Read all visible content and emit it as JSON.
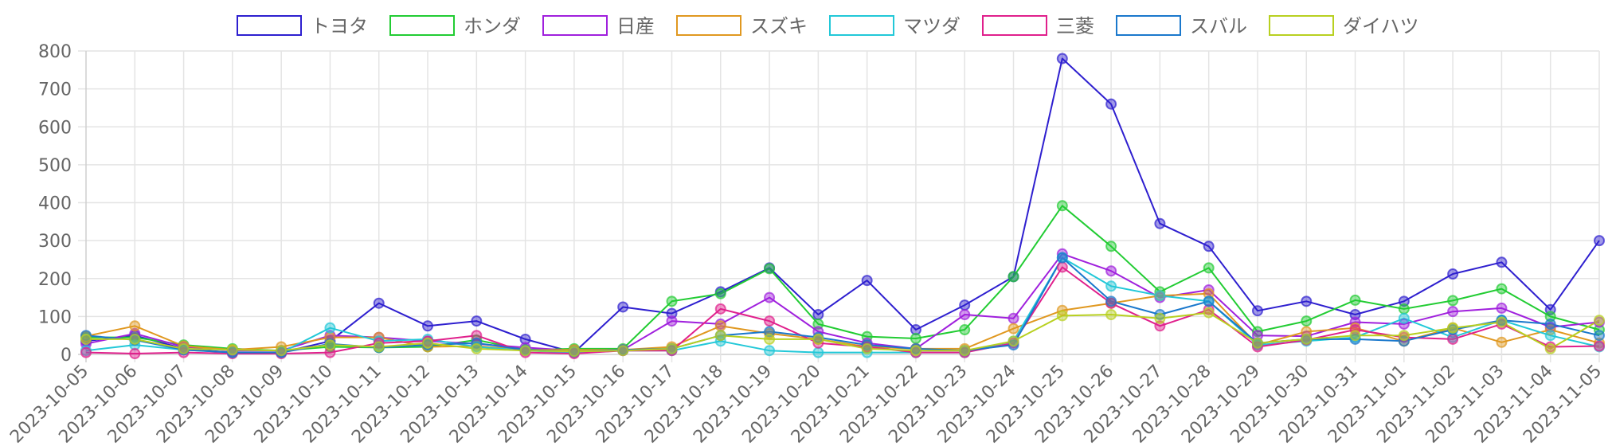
{
  "chart_data": {
    "type": "line",
    "title": "",
    "xlabel": "",
    "ylabel": "",
    "ylim": [
      0,
      800
    ],
    "yticks": [
      0,
      100,
      200,
      300,
      400,
      500,
      600,
      700,
      800
    ],
    "grid": true,
    "legend_position": "top",
    "categories": [
      "2023-10-05",
      "2023-10-06",
      "2023-10-07",
      "2023-10-08",
      "2023-10-09",
      "2023-10-10",
      "2023-10-11",
      "2023-10-12",
      "2023-10-13",
      "2023-10-14",
      "2023-10-15",
      "2023-10-16",
      "2023-10-17",
      "2023-10-18",
      "2023-10-19",
      "2023-10-20",
      "2023-10-21",
      "2023-10-22",
      "2023-10-23",
      "2023-10-24",
      "2023-10-25",
      "2023-10-26",
      "2023-10-27",
      "2023-10-28",
      "2023-10-29",
      "2023-10-30",
      "2023-10-31",
      "2023-11-01",
      "2023-11-02",
      "2023-11-03",
      "2023-11-04",
      "2023-11-05"
    ],
    "series": [
      {
        "name": "トヨタ",
        "color": "#2e1fcf",
        "values": [
          35,
          50,
          15,
          5,
          5,
          35,
          135,
          75,
          88,
          40,
          5,
          125,
          108,
          165,
          228,
          105,
          195,
          65,
          130,
          205,
          780,
          660,
          345,
          285,
          115,
          140,
          105,
          140,
          212,
          243,
          118,
          300
        ]
      },
      {
        "name": "ホンダ",
        "color": "#22cc33",
        "values": [
          45,
          45,
          25,
          15,
          10,
          20,
          18,
          20,
          38,
          12,
          15,
          15,
          140,
          160,
          226,
          80,
          47,
          42,
          65,
          205,
          392,
          285,
          165,
          228,
          60,
          88,
          143,
          120,
          142,
          173,
          100,
          65
        ]
      },
      {
        "name": "日産",
        "color": "#a020dd",
        "values": [
          28,
          55,
          20,
          10,
          10,
          50,
          45,
          35,
          28,
          18,
          10,
          12,
          88,
          80,
          150,
          60,
          30,
          15,
          105,
          95,
          265,
          220,
          150,
          170,
          50,
          48,
          85,
          80,
          113,
          122,
          72,
          85
        ]
      },
      {
        "name": "スズキ",
        "color": "#e09820",
        "values": [
          48,
          75,
          22,
          12,
          20,
          45,
          45,
          20,
          22,
          12,
          12,
          12,
          20,
          75,
          55,
          40,
          20,
          15,
          15,
          68,
          116,
          135,
          155,
          160,
          25,
          60,
          70,
          35,
          70,
          32,
          65,
          30
        ]
      },
      {
        "name": "マツダ",
        "color": "#22c8d8",
        "values": [
          10,
          25,
          12,
          5,
          5,
          70,
          35,
          40,
          20,
          10,
          5,
          10,
          10,
          35,
          10,
          5,
          5,
          5,
          5,
          35,
          255,
          180,
          155,
          140,
          25,
          35,
          45,
          95,
          45,
          90,
          50,
          20
        ]
      },
      {
        "name": "三菱",
        "color": "#e0208c",
        "values": [
          5,
          2,
          5,
          2,
          2,
          5,
          30,
          35,
          50,
          5,
          2,
          10,
          10,
          120,
          88,
          30,
          20,
          5,
          5,
          30,
          230,
          135,
          75,
          118,
          20,
          38,
          65,
          45,
          40,
          80,
          20,
          22
        ]
      },
      {
        "name": "スバル",
        "color": "#1a78cc",
        "values": [
          50,
          38,
          12,
          5,
          5,
          28,
          18,
          25,
          30,
          12,
          8,
          12,
          15,
          50,
          60,
          45,
          25,
          15,
          10,
          25,
          255,
          140,
          105,
          140,
          30,
          40,
          40,
          35,
          65,
          90,
          80,
          50
        ]
      },
      {
        "name": "ダイハツ",
        "color": "#b8d020",
        "values": [
          40,
          40,
          15,
          12,
          10,
          25,
          20,
          30,
          15,
          10,
          8,
          10,
          15,
          50,
          40,
          40,
          15,
          10,
          10,
          35,
          102,
          105,
          95,
          110,
          30,
          40,
          50,
          50,
          70,
          85,
          15,
          90
        ]
      }
    ]
  }
}
